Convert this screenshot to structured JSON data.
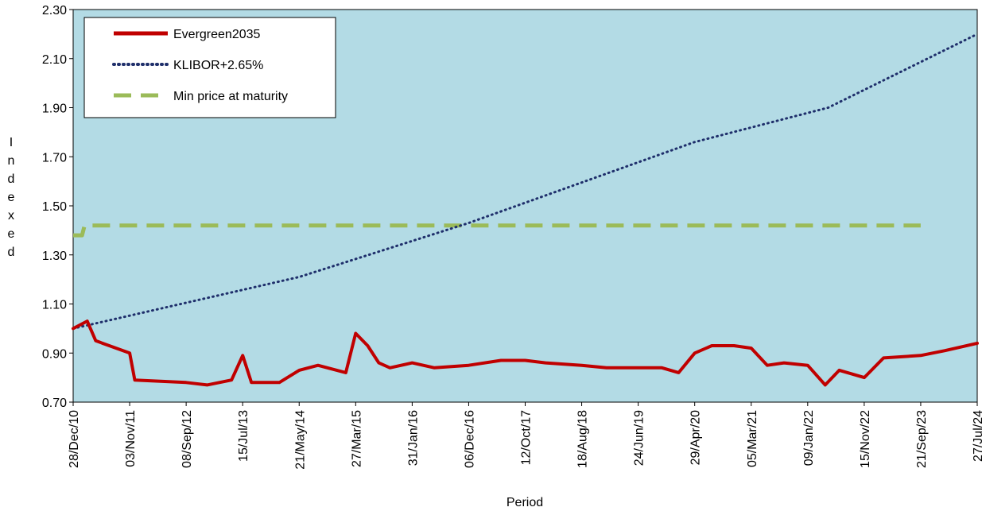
{
  "chart_data": {
    "type": "line",
    "title": "",
    "xlabel": "Period",
    "ylabel": "Indexed",
    "ylim": [
      0.7,
      2.3
    ],
    "y_ticks": [
      "0.70",
      "0.90",
      "1.10",
      "1.30",
      "1.50",
      "1.70",
      "1.90",
      "2.10",
      "2.30"
    ],
    "x_tick_labels": [
      "28/Dec/10",
      "03/Nov/11",
      "08/Sep/12",
      "15/Jul/13",
      "21/May/14",
      "27/Mar/15",
      "31/Jan/16",
      "06/Dec/16",
      "12/Oct/17",
      "18/Aug/18",
      "24/Jun/19",
      "29/Apr/20",
      "05/Mar/21",
      "09/Jan/22",
      "15/Nov/22",
      "21/Sep/23",
      "27/Jul/24"
    ],
    "grid": false,
    "background": "#b3dbe5",
    "legend_position": "top-left",
    "series": [
      {
        "name": "Evergreen2035",
        "color": "#c00000",
        "style": "solid",
        "x": [
          "28/Dec/10",
          "15/Mar/11",
          "01/May/11",
          "03/Nov/11",
          "01/Dec/11",
          "08/Sep/12",
          "01/Jan/13",
          "15/May/13",
          "15/Jul/13",
          "01/Sep/13",
          "01/Feb/14",
          "21/May/14",
          "01/Sep/14",
          "01/Feb/15",
          "27/Mar/15",
          "01/Jun/15",
          "01/Aug/15",
          "01/Oct/15",
          "31/Jan/16",
          "01/Jun/16",
          "06/Dec/16",
          "01/Jun/17",
          "12/Oct/17",
          "01/Feb/18",
          "18/Aug/18",
          "01/Jan/19",
          "24/Jun/19",
          "01/Nov/19",
          "01/Feb/20",
          "29/Apr/20",
          "01/Aug/20",
          "01/Dec/20",
          "05/Mar/21",
          "01/Jun/21",
          "01/Sep/21",
          "09/Jan/22",
          "15/Apr/22",
          "01/Jul/22",
          "15/Nov/22",
          "01/Mar/23",
          "21/Sep/23",
          "01/Feb/24",
          "27/Jul/24"
        ],
        "values": [
          1.0,
          1.03,
          0.95,
          0.9,
          0.79,
          0.78,
          0.77,
          0.79,
          0.89,
          0.78,
          0.78,
          0.83,
          0.85,
          0.82,
          0.98,
          0.93,
          0.86,
          0.84,
          0.86,
          0.84,
          0.85,
          0.87,
          0.87,
          0.86,
          0.85,
          0.84,
          0.84,
          0.84,
          0.82,
          0.9,
          0.93,
          0.93,
          0.92,
          0.85,
          0.86,
          0.85,
          0.77,
          0.83,
          0.8,
          0.88,
          0.89,
          0.91,
          0.94
        ]
      },
      {
        "name": "KLIBOR+2.65%",
        "color": "#1f2f6b",
        "style": "dotted",
        "x": [
          "28/Dec/10",
          "21/May/14",
          "06/Dec/16",
          "29/Apr/20",
          "01/May/22",
          "27/Jul/24"
        ],
        "values": [
          1.0,
          1.21,
          1.43,
          1.76,
          1.9,
          2.2
        ]
      },
      {
        "name": "Min price at maturity",
        "color": "#9bbb59",
        "style": "dashed",
        "x": [
          "28/Dec/10",
          "15/Feb/11",
          "01/Mar/11",
          "21/Sep/23"
        ],
        "values": [
          1.38,
          1.38,
          1.42,
          1.42
        ]
      }
    ]
  }
}
